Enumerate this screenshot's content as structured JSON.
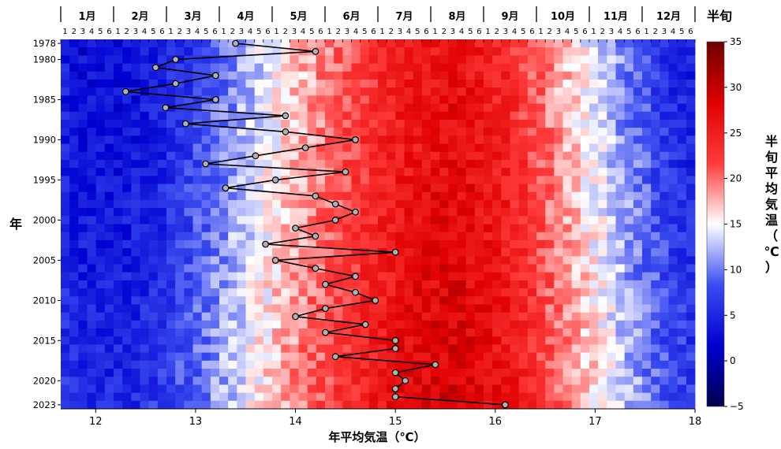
{
  "chart_data": {
    "type": "heatmap",
    "title": "",
    "heatmap": {
      "description": "rows = years (1978-2023), columns = half-month periods (半旬), 6 per month, 72 columns",
      "top_axis_unit_label": "半旬",
      "months": [
        "1月",
        "2月",
        "3月",
        "4月",
        "5月",
        "6月",
        "7月",
        "8月",
        "9月",
        "10月",
        "11月",
        "12月"
      ],
      "sub_ticks": [
        "1",
        "2",
        "3",
        "4",
        "5",
        "6"
      ],
      "year_ticks": [
        "1978",
        "1980",
        "1985",
        "1990",
        "1995",
        "2000",
        "2005",
        "2010",
        "2015",
        "2020",
        "2023"
      ],
      "year_start": 1978,
      "year_end": 2023,
      "ylabel": "年",
      "monthly_mean_profile_c": [
        3.5,
        4.0,
        7.5,
        13.0,
        18.0,
        22.0,
        26.0,
        27.5,
        24.5,
        18.5,
        12.5,
        6.5
      ],
      "colorbar": {
        "label": "半旬平均気温（℃）",
        "ticks": [
          -5,
          0,
          5,
          10,
          15,
          20,
          25,
          30,
          35
        ],
        "range": [
          -5,
          35
        ],
        "colors": [
          "#00004d",
          "#0000d0",
          "#3b4cf0",
          "#ffffff",
          "#ff3b3b",
          "#e00000",
          "#6e0000"
        ]
      }
    },
    "line": {
      "description": "annual mean temperature per year, plotted against bottom axis",
      "xlabel": "年平均気温（℃）",
      "xlim": [
        11.65,
        18.0
      ],
      "xticks": [
        "12",
        "13",
        "14",
        "15",
        "16",
        "17",
        "18"
      ],
      "color": "#000000",
      "marker_fill": "#b0b0b0",
      "points": [
        {
          "year": 1978,
          "value": 13.4
        },
        {
          "year": 1979,
          "value": 14.2
        },
        {
          "year": 1980,
          "value": 12.8
        },
        {
          "year": 1981,
          "value": 12.6
        },
        {
          "year": 1982,
          "value": 13.2
        },
        {
          "year": 1983,
          "value": 12.8
        },
        {
          "year": 1984,
          "value": 12.3
        },
        {
          "year": 1985,
          "value": 13.2
        },
        {
          "year": 1986,
          "value": 12.7
        },
        {
          "year": 1987,
          "value": 13.9
        },
        {
          "year": 1988,
          "value": 12.9
        },
        {
          "year": 1989,
          "value": 13.9
        },
        {
          "year": 1990,
          "value": 14.6
        },
        {
          "year": 1991,
          "value": 14.1
        },
        {
          "year": 1992,
          "value": 13.6
        },
        {
          "year": 1993,
          "value": 13.1
        },
        {
          "year": 1994,
          "value": 14.5
        },
        {
          "year": 1995,
          "value": 13.8
        },
        {
          "year": 1996,
          "value": 13.3
        },
        {
          "year": 1997,
          "value": 14.2
        },
        {
          "year": 1998,
          "value": 14.4
        },
        {
          "year": 1999,
          "value": 14.6
        },
        {
          "year": 2000,
          "value": 14.4
        },
        {
          "year": 2001,
          "value": 14.0
        },
        {
          "year": 2002,
          "value": 14.2
        },
        {
          "year": 2003,
          "value": 13.7
        },
        {
          "year": 2004,
          "value": 15.0
        },
        {
          "year": 2005,
          "value": 13.8
        },
        {
          "year": 2006,
          "value": 14.2
        },
        {
          "year": 2007,
          "value": 14.6
        },
        {
          "year": 2008,
          "value": 14.3
        },
        {
          "year": 2009,
          "value": 14.6
        },
        {
          "year": 2010,
          "value": 14.8
        },
        {
          "year": 2011,
          "value": 14.3
        },
        {
          "year": 2012,
          "value": 14.0
        },
        {
          "year": 2013,
          "value": 14.7
        },
        {
          "year": 2014,
          "value": 14.3
        },
        {
          "year": 2015,
          "value": 15.0
        },
        {
          "year": 2016,
          "value": 15.0
        },
        {
          "year": 2017,
          "value": 14.4
        },
        {
          "year": 2018,
          "value": 15.4
        },
        {
          "year": 2019,
          "value": 15.0
        },
        {
          "year": 2020,
          "value": 15.1
        },
        {
          "year": 2021,
          "value": 15.0
        },
        {
          "year": 2022,
          "value": 15.0
        },
        {
          "year": 2023,
          "value": 16.1
        }
      ]
    }
  }
}
